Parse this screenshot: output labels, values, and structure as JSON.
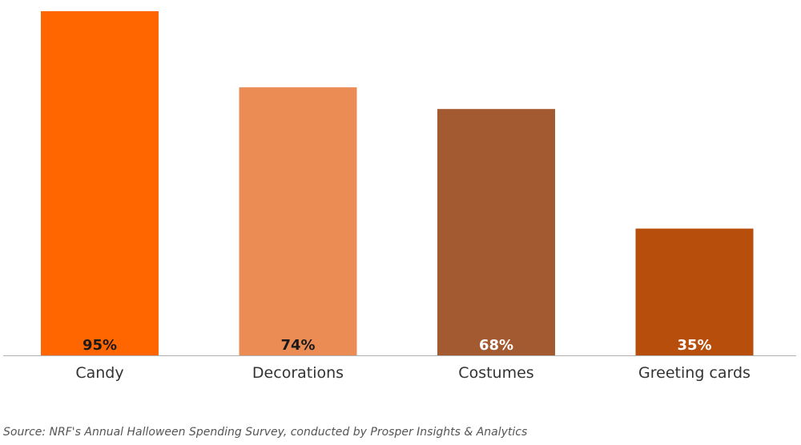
{
  "chart_data": {
    "type": "bar",
    "categories": [
      "Candy",
      "Decorations",
      "Costumes",
      "Greeting cards"
    ],
    "values": [
      95,
      74,
      68,
      35
    ],
    "value_labels": [
      "95%",
      "74%",
      "68%",
      "35%"
    ],
    "bar_colors": [
      "#ff6600",
      "#eb8c55",
      "#a35a30",
      "#b84e0b"
    ],
    "value_label_colors": [
      "#1a1a1a",
      "#1a1a1a",
      "#ffffff",
      "#ffffff"
    ],
    "ylim": [
      0,
      100
    ],
    "grid": false,
    "legend": "none"
  },
  "source": "Source: NRF's Annual Halloween Spending Survey, conducted by Prosper Insights & Analytics"
}
